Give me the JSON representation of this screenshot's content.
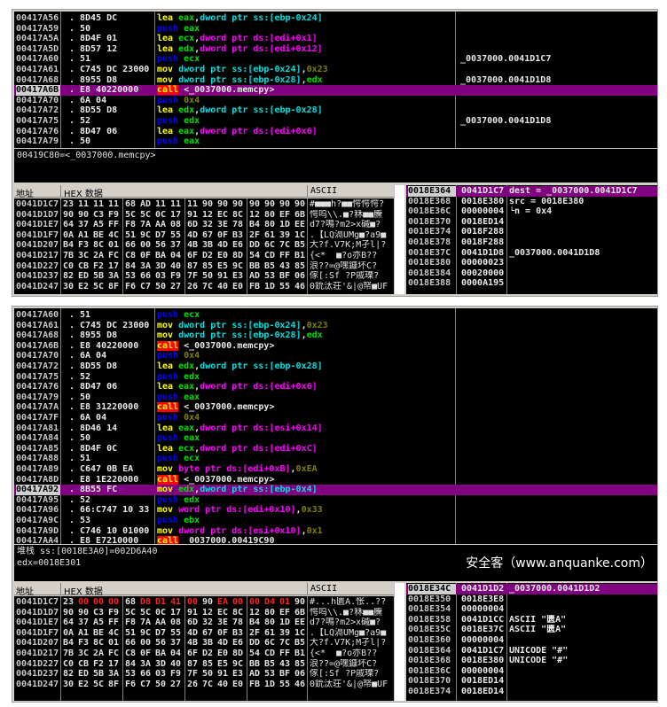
{
  "colors": {
    "selection": "#800080",
    "call_bg": "#ff0000",
    "keyword_lea_mov": "#ffff00",
    "keyword_push": "#0000ff",
    "register": "#00e000",
    "ss_operand": "#00e0e0",
    "ds_operand": "#ff00ff",
    "constant": "#808000",
    "modified_byte": "#ff2020"
  },
  "top": {
    "disasm": [
      {
        "addr": "00417A56",
        "mark": ".",
        "hex": "8D45 DC",
        "ins": [
          [
            "lea",
            "y"
          ],
          [
            " eax",
            "g"
          ],
          [
            ",",
            "w"
          ],
          [
            "dword ptr ss:[ebp-0x24]",
            "c"
          ]
        ],
        "comment": ""
      },
      {
        "addr": "00417A59",
        "mark": ".",
        "hex": "50",
        "ins": [
          [
            "push",
            "b"
          ],
          [
            " eax",
            "g"
          ]
        ],
        "comment": ""
      },
      {
        "addr": "00417A5A",
        "mark": ".",
        "hex": "8D4F 01",
        "ins": [
          [
            "lea",
            "y"
          ],
          [
            " ecx",
            "g"
          ],
          [
            ",",
            "w"
          ],
          [
            "dword ptr ds:[edi+0x1]",
            "m"
          ]
        ],
        "comment": ""
      },
      {
        "addr": "00417A5D",
        "mark": ".",
        "hex": "8D57 12",
        "ins": [
          [
            "lea",
            "y"
          ],
          [
            " edx",
            "g"
          ],
          [
            ",",
            "w"
          ],
          [
            "dword ptr ds:[edi+0x12]",
            "m"
          ]
        ],
        "comment": ""
      },
      {
        "addr": "00417A60",
        "mark": ".",
        "hex": "51",
        "ins": [
          [
            "push",
            "b"
          ],
          [
            " ecx",
            "g"
          ]
        ],
        "comment": "_0037000.0041D1C7"
      },
      {
        "addr": "00417A61",
        "mark": ".",
        "hex": "C745 DC 23000",
        "ins": [
          [
            "mov",
            "y"
          ],
          [
            " dword ptr ss:[ebp-0x24]",
            "c"
          ],
          [
            ",",
            "w"
          ],
          [
            "0x23",
            "o"
          ]
        ],
        "comment": ""
      },
      {
        "addr": "00417A68",
        "mark": ".",
        "hex": "8955 D8",
        "ins": [
          [
            "mov",
            "y"
          ],
          [
            " dword ptr ss:[ebp-0x28]",
            "c"
          ],
          [
            ",",
            "w"
          ],
          [
            "edx",
            "g"
          ]
        ],
        "comment": "_0037000.0041D1D8"
      },
      {
        "addr": "00417A6B",
        "mark": ".",
        "hex": "E8 40220000",
        "ins": [
          [
            "call",
            "r"
          ],
          [
            " <_0037000.memcpy>",
            "w"
          ]
        ],
        "comment": "",
        "selected": true
      },
      {
        "addr": "00417A70",
        "mark": ".",
        "hex": "6A 04",
        "ins": [
          [
            "push",
            "b"
          ],
          [
            " 0x4",
            "o"
          ]
        ],
        "comment": ""
      },
      {
        "addr": "00417A72",
        "mark": ".",
        "hex": "8D55 D8",
        "ins": [
          [
            "lea",
            "y"
          ],
          [
            " edx",
            "g"
          ],
          [
            ",",
            "w"
          ],
          [
            "dword ptr ss:[ebp-0x28]",
            "c"
          ]
        ],
        "comment": ""
      },
      {
        "addr": "00417A75",
        "mark": ".",
        "hex": "52",
        "ins": [
          [
            "push",
            "b"
          ],
          [
            " edx",
            "g"
          ]
        ],
        "comment": "_0037000.0041D1D8"
      },
      {
        "addr": "00417A76",
        "mark": ".",
        "hex": "8D47 06",
        "ins": [
          [
            "lea",
            "y"
          ],
          [
            " eax",
            "g"
          ],
          [
            ",",
            "w"
          ],
          [
            "dword ptr ds:[edi+0x6]",
            "m"
          ]
        ],
        "comment": ""
      },
      {
        "addr": "00417A79",
        "mark": ".",
        "hex": "50",
        "ins": [
          [
            "push",
            "b"
          ],
          [
            " eax",
            "g"
          ]
        ],
        "comment": ""
      }
    ],
    "info": [
      "00419C80=<_0037000.memcpy>"
    ],
    "dump_header": {
      "addr": "地址",
      "hex": "HEX 数据",
      "ascii": "ASCII"
    },
    "dump": [
      {
        "addr": "0041D1C7",
        "bytes": "23 11 11 11 68 AD 11 11 11 90 90 90 90 90 90 90",
        "ascii": "#■■■h?■■愕愕愕?"
      },
      {
        "addr": "0041D1D7",
        "bytes": "90 90 C3 F9 5C 5C 0C 17 91 12 EC 8C 12 80 EF 6B",
        "ascii": "愕呜\\\\.■?秝■■黱"
      },
      {
        "addr": "0041D1E7",
        "bytes": "64 37 A5 FF F8 7A AA 08 6D 32 3E 78 B4 80 1D EE",
        "ascii": "d7?鳴?m2>x磩■?"
      },
      {
        "addr": "0041D1F7",
        "bytes": "0A A1 BE 4C 51 9C D7 55 4D 67 0F B3 2F 61 39 1C",
        "ascii": ".【LQ滆UMg■?a9■"
      },
      {
        "addr": "0041D207",
        "bytes": "B4 F3 8C 01 66 00 56 37 4B 3B 4D E6 DD 6C 7C B5",
        "ascii": "大?f.V7K;M孑l|?"
      },
      {
        "addr": "0041D217",
        "bytes": "7B 3C 2A FC C8 0F BA 04 6F D2 E0 8D 54 CD FF B1",
        "ascii": "{<*  ■?o亦B??"
      },
      {
        "addr": "0041D227",
        "bytes": "C0 CB F2 17 84 3A 3D 40 87 85 E5 9C BB B5 43 85",
        "ascii": "浪??=@嘿鏮坏C?"
      },
      {
        "addr": "0041D237",
        "bytes": "82 ED 5B 3A 53 66 03 F9 7F 50 91 E3 AD 53 BF 06",
        "ascii": "傢[:Sf ?P戚瑮?"
      },
      {
        "addr": "0041D247",
        "bytes": "30 E2 5C 8F F6 C7 50 27 26 7C 40 E0 FB 1D 55 46",
        "ascii": "0鈗汰荘'&|@帑■UF"
      }
    ],
    "stack": [
      {
        "addr": "0018E364",
        "value": "0041D1C7",
        "comment": "dest = _0037000.0041D1C7",
        "selected": true
      },
      {
        "addr": "0018E368",
        "value": "0018E380",
        "comment": "src = 0018E380"
      },
      {
        "addr": "0018E36C",
        "value": "00000004",
        "comment": "└n = 0x4"
      },
      {
        "addr": "0018E370",
        "value": "0018ED14",
        "comment": ""
      },
      {
        "addr": "0018E374",
        "value": "0018F288",
        "comment": ""
      },
      {
        "addr": "0018E378",
        "value": "0018F288",
        "comment": ""
      },
      {
        "addr": "0018E37C",
        "value": "0041D1D8",
        "comment": "_0037000.0041D1D8"
      },
      {
        "addr": "0018E380",
        "value": "00000023",
        "comment": ""
      },
      {
        "addr": "0018E384",
        "value": "00020000",
        "comment": ""
      },
      {
        "addr": "0018E388",
        "value": "0000A195",
        "comment": ""
      }
    ]
  },
  "bottom": {
    "disasm": [
      {
        "addr": "00417A60",
        "mark": ".",
        "hex": "51",
        "ins": [
          [
            "push",
            "b"
          ],
          [
            " ecx",
            "g"
          ]
        ],
        "comment": ""
      },
      {
        "addr": "00417A61",
        "mark": ".",
        "hex": "C745 DC 23000",
        "ins": [
          [
            "mov",
            "y"
          ],
          [
            " dword ptr ss:[ebp-0x24]",
            "c"
          ],
          [
            ",",
            "w"
          ],
          [
            "0x23",
            "o"
          ]
        ],
        "comment": ""
      },
      {
        "addr": "00417A68",
        "mark": ".",
        "hex": "8955 D8",
        "ins": [
          [
            "mov",
            "y"
          ],
          [
            " dword ptr ss:[ebp-0x28]",
            "c"
          ],
          [
            ",",
            "w"
          ],
          [
            "edx",
            "g"
          ]
        ],
        "comment": ""
      },
      {
        "addr": "00417A6B",
        "mark": ".",
        "hex": "E8 40220000",
        "ins": [
          [
            "call",
            "r"
          ],
          [
            " <_0037000.memcpy>",
            "w"
          ]
        ],
        "comment": ""
      },
      {
        "addr": "00417A70",
        "mark": ".",
        "hex": "6A 04",
        "ins": [
          [
            "push",
            "b"
          ],
          [
            " 0x4",
            "o"
          ]
        ],
        "comment": ""
      },
      {
        "addr": "00417A72",
        "mark": ".",
        "hex": "8D55 D8",
        "ins": [
          [
            "lea",
            "y"
          ],
          [
            " edx",
            "g"
          ],
          [
            ",",
            "w"
          ],
          [
            "dword ptr ss:[ebp-0x28]",
            "c"
          ]
        ],
        "comment": ""
      },
      {
        "addr": "00417A75",
        "mark": ".",
        "hex": "52",
        "ins": [
          [
            "push",
            "b"
          ],
          [
            " edx",
            "g"
          ]
        ],
        "comment": ""
      },
      {
        "addr": "00417A76",
        "mark": ".",
        "hex": "8D47 06",
        "ins": [
          [
            "lea",
            "y"
          ],
          [
            " eax",
            "g"
          ],
          [
            ",",
            "w"
          ],
          [
            "dword ptr ds:[edi+0x6]",
            "m"
          ]
        ],
        "comment": ""
      },
      {
        "addr": "00417A79",
        "mark": ".",
        "hex": "50",
        "ins": [
          [
            "push",
            "b"
          ],
          [
            " eax",
            "g"
          ]
        ],
        "comment": ""
      },
      {
        "addr": "00417A7A",
        "mark": ".",
        "hex": "E8 31220000",
        "ins": [
          [
            "call",
            "r"
          ],
          [
            " <_0037000.memcpy>",
            "w"
          ]
        ],
        "comment": ""
      },
      {
        "addr": "00417A7F",
        "mark": ".",
        "hex": "6A 04",
        "ins": [
          [
            "push",
            "b"
          ],
          [
            " 0x4",
            "o"
          ]
        ],
        "comment": ""
      },
      {
        "addr": "00417A81",
        "mark": ".",
        "hex": "8D46 14",
        "ins": [
          [
            "lea",
            "y"
          ],
          [
            " eax",
            "g"
          ],
          [
            ",",
            "w"
          ],
          [
            "dword ptr ds:[esi+0x14]",
            "m"
          ]
        ],
        "comment": ""
      },
      {
        "addr": "00417A84",
        "mark": ".",
        "hex": "50",
        "ins": [
          [
            "push",
            "b"
          ],
          [
            " eax",
            "g"
          ]
        ],
        "comment": ""
      },
      {
        "addr": "00417A85",
        "mark": ".",
        "hex": "8D4F 0C",
        "ins": [
          [
            "lea",
            "y"
          ],
          [
            " ecx",
            "g"
          ],
          [
            ",",
            "w"
          ],
          [
            "dword ptr ds:[edi+0xC]",
            "m"
          ]
        ],
        "comment": ""
      },
      {
        "addr": "00417A88",
        "mark": ".",
        "hex": "51",
        "ins": [
          [
            "push",
            "b"
          ],
          [
            " ecx",
            "g"
          ]
        ],
        "comment": ""
      },
      {
        "addr": "00417A89",
        "mark": ".",
        "hex": "C647 0B EA",
        "ins": [
          [
            "mov",
            "y"
          ],
          [
            " byte ptr ds:[edi+0xB]",
            "m"
          ],
          [
            ",",
            "w"
          ],
          [
            "0xEA",
            "o"
          ]
        ],
        "comment": ""
      },
      {
        "addr": "00417A8D",
        "mark": ".",
        "hex": "E8 1E220000",
        "ins": [
          [
            "call",
            "r"
          ],
          [
            " <_0037000.memcpy>",
            "w"
          ]
        ],
        "comment": ""
      },
      {
        "addr": "00417A92",
        "mark": ".",
        "hex": "8B55 FC",
        "ins": [
          [
            "mov",
            "y"
          ],
          [
            " edx",
            "g"
          ],
          [
            ",",
            "w"
          ],
          [
            "dword ptr ss:[ebp-0x4]",
            "c"
          ]
        ],
        "comment": "",
        "selected": true
      },
      {
        "addr": "00417A95",
        "mark": ".",
        "hex": "52",
        "ins": [
          [
            "push",
            "b"
          ],
          [
            " edx",
            "g"
          ]
        ],
        "comment": ""
      },
      {
        "addr": "00417A96",
        "mark": ".",
        "hex": "66:C747 10 33",
        "ins": [
          [
            "mov",
            "y"
          ],
          [
            " word ptr ds:[edi+0x10]",
            "m"
          ],
          [
            ",",
            "w"
          ],
          [
            "0x33",
            "o"
          ]
        ],
        "comment": ""
      },
      {
        "addr": "00417A9C",
        "mark": ".",
        "hex": "53",
        "ins": [
          [
            "push",
            "b"
          ],
          [
            " ebx",
            "g"
          ]
        ],
        "comment": ""
      },
      {
        "addr": "00417A9D",
        "mark": ".",
        "hex": "C746 10 01000",
        "ins": [
          [
            "mov",
            "y"
          ],
          [
            " dword ptr ds:[esi+0x10]",
            "m"
          ],
          [
            ",",
            "w"
          ],
          [
            "0x1",
            "o"
          ]
        ],
        "comment": ""
      },
      {
        "addr": "00417AA4",
        "mark": ".",
        "hex": "E8 E7210000",
        "ins": [
          [
            "call",
            "r"
          ],
          [
            " _0037000.00419C90",
            "w"
          ]
        ],
        "comment": ""
      }
    ],
    "info": [
      "堆栈 ss:[0018E3A0]=002D6A40",
      "edx=0018E301"
    ],
    "dump_header": {
      "addr": "地址",
      "hex": "HEX 数据",
      "ascii": "ASCII"
    },
    "dump": [
      {
        "addr": "0041D1C7",
        "bytes": "23 00 00 00 68 D8 D1 41 00 90 EA 00 00 D4 01 90",
        "ascii": "#...h匮A.怅..??",
        "changed": [
          1,
          2,
          3,
          5,
          6,
          7,
          8,
          10,
          11,
          12,
          13,
          14
        ]
      },
      {
        "addr": "0041D1D7",
        "bytes": "90 90 C3 F9 5C 5C 0C 17 91 12 EC 8C 12 80 EF 6B",
        "ascii": "愕呜\\\\.■?秝■■黱"
      },
      {
        "addr": "0041D1E7",
        "bytes": "64 37 A5 FF F8 7A AA 08 6D 32 3E 78 B4 80 1D EE",
        "ascii": "d7?鳴?m2>x磩■?"
      },
      {
        "addr": "0041D1F7",
        "bytes": "0A A1 BE 4C 51 9C D7 55 4D 67 0F B3 2F 61 39 1C",
        "ascii": ".【LQ滆UMg■?a9■"
      },
      {
        "addr": "0041D207",
        "bytes": "B4 F3 8C 01 66 00 56 37 4B 3B 4D E6 DD 6C 7C B5",
        "ascii": "大?f.V7K;M孑l|?"
      },
      {
        "addr": "0041D217",
        "bytes": "7B 3C 2A FC C8 0F BA 04 6F D2 E0 8D 54 CD FF B1",
        "ascii": "{<*  ■?o亦B??"
      },
      {
        "addr": "0041D227",
        "bytes": "C0 CB F2 17 84 3A 3D 40 87 85 E5 9C BB B5 43 85",
        "ascii": "浪??=@嘿鏮坏C?"
      },
      {
        "addr": "0041D237",
        "bytes": "82 ED 5B 3A 53 66 03 F9 7F 50 91 E3 AD 53 BF 06",
        "ascii": "傢[:Sf ?P戚瑮?"
      },
      {
        "addr": "0041D247",
        "bytes": "30 E2 5C 8F F6 C7 50 27 26 7C 40 E0 FB 1D 55 46",
        "ascii": "0鈗汰荘'&|@帑■UF"
      }
    ],
    "stack": [
      {
        "addr": "0018E34C",
        "value": "0041D1D2",
        "comment": "_0037000.0041D1D2",
        "selected": true
      },
      {
        "addr": "0018E350",
        "value": "0018E3E8",
        "comment": ""
      },
      {
        "addr": "0018E354",
        "value": "00000004",
        "comment": ""
      },
      {
        "addr": "0018E358",
        "value": "0041D1CC",
        "comment": "ASCII \"匮A\""
      },
      {
        "addr": "0018E35C",
        "value": "0018E37C",
        "comment": "ASCII \"匮A\""
      },
      {
        "addr": "0018E360",
        "value": "00000004",
        "comment": ""
      },
      {
        "addr": "0018E364",
        "value": "0041D1C7",
        "comment": "UNICODE \"#\""
      },
      {
        "addr": "0018E368",
        "value": "0018E380",
        "comment": "UNICODE \"#\""
      },
      {
        "addr": "0018E36C",
        "value": "00000004",
        "comment": ""
      },
      {
        "addr": "0018E370",
        "value": "0018ED14",
        "comment": ""
      },
      {
        "addr": "0018E374",
        "value": "0018ED14",
        "comment": ""
      }
    ]
  },
  "watermark": "安全客（www.anquanke.com）"
}
